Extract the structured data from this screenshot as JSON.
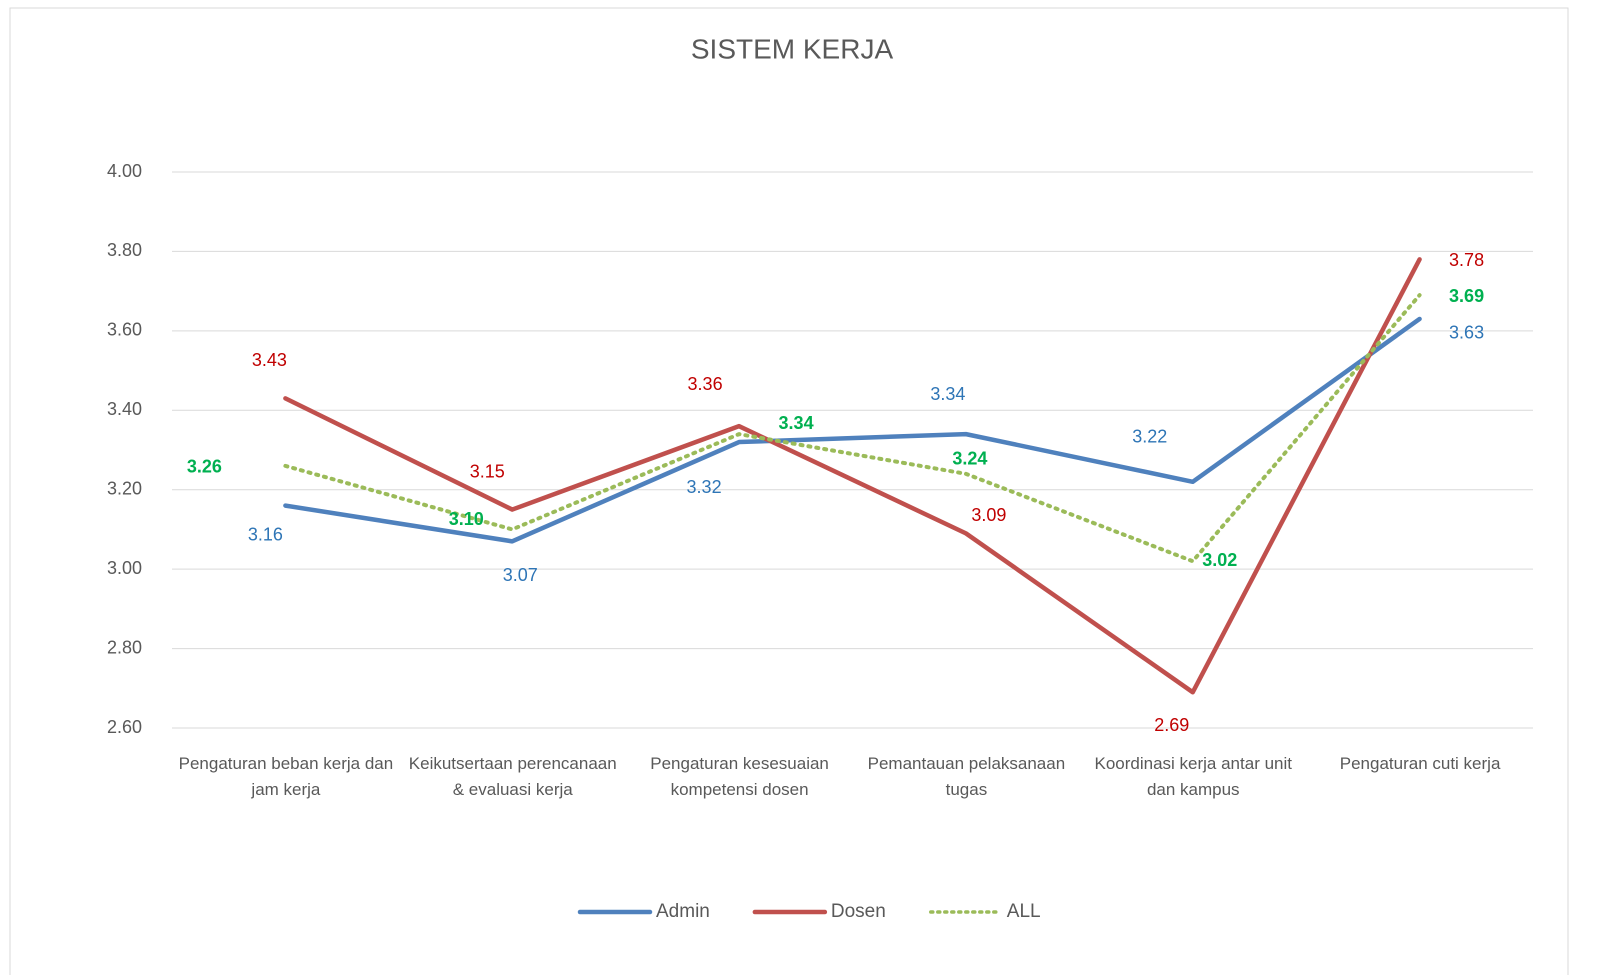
{
  "chart_data": {
    "type": "line",
    "title": "SISTEM KERJA",
    "categories": [
      "Pengaturan beban kerja dan jam kerja",
      "Keikutsertaan perencanaan & evaluasi kerja",
      "Pengaturan kesesuaian kompetensi dosen",
      "Pemantauan pelaksanaan tugas",
      "Koordinasi kerja antar unit dan kampus",
      "Pengaturan cuti kerja"
    ],
    "series": [
      {
        "name": "Admin",
        "color": "#4f81bd",
        "label_color": "#2e75b6",
        "dash": "solid",
        "values": [
          3.16,
          3.07,
          3.32,
          3.34,
          3.22,
          3.63
        ],
        "value_labels": [
          "3.16",
          "3.07",
          "3.32",
          "3.34",
          "3.22",
          "3.63"
        ]
      },
      {
        "name": "Dosen",
        "color": "#c0504d",
        "label_color": "#c00000",
        "dash": "solid",
        "values": [
          3.43,
          3.15,
          3.36,
          3.09,
          2.69,
          3.78
        ],
        "value_labels": [
          "3.43",
          "3.15",
          "3.36",
          "3.09",
          "2.69",
          "3.78"
        ]
      },
      {
        "name": "ALL",
        "color": "#9bbb59",
        "label_color": "#00b050",
        "dash": "dotted",
        "values": [
          3.26,
          3.1,
          3.34,
          3.24,
          3.02,
          3.69
        ],
        "value_labels": [
          "3.26",
          "3.10",
          "3.34",
          "3.24",
          "3.02",
          "3.69"
        ]
      }
    ],
    "ylim": [
      2.6,
      4.0
    ],
    "yticks": [
      {
        "value": 2.6,
        "label": "2.60"
      },
      {
        "value": 2.8,
        "label": "2.80"
      },
      {
        "value": 3.0,
        "label": "3.00"
      },
      {
        "value": 3.2,
        "label": "3.20"
      },
      {
        "value": 3.4,
        "label": "3.40"
      },
      {
        "value": 3.6,
        "label": "3.60"
      },
      {
        "value": 3.8,
        "label": "3.80"
      },
      {
        "value": 4.0,
        "label": "4.00"
      }
    ],
    "grid": true,
    "legend": "bottom"
  }
}
